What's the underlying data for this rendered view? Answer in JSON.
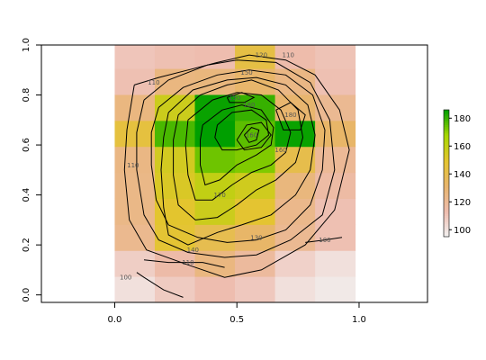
{
  "chart_data": {
    "type": "heatmap",
    "title": "",
    "xlabel": "",
    "ylabel": "",
    "xlim": [
      -0.3,
      1.28
    ],
    "ylim": [
      -0.03,
      1.0
    ],
    "x_ticks": [
      {
        "value": 0.0,
        "label": "0.0"
      },
      {
        "value": 0.5,
        "label": "0.5"
      },
      {
        "value": 1.0,
        "label": "1.0"
      }
    ],
    "y_ticks": [
      {
        "value": 0.0,
        "label": "0.0"
      },
      {
        "value": 0.2,
        "label": "0.2"
      },
      {
        "value": 0.4,
        "label": "0.4"
      },
      {
        "value": 0.6,
        "label": "0.6"
      },
      {
        "value": 0.8,
        "label": "0.8"
      },
      {
        "value": 1.0,
        "label": "1.0"
      }
    ],
    "grid": false,
    "x_edges": [
      0.0,
      0.164,
      0.328,
      0.492,
      0.656,
      0.82,
      0.984
    ],
    "y_edges": [
      -0.03,
      0.074,
      0.178,
      0.282,
      0.386,
      0.49,
      0.594,
      0.698,
      0.802,
      0.906,
      1.0
    ],
    "cells_bottom_to_top": [
      [
        101,
        108,
        113,
        109,
        101,
        98
      ],
      [
        107,
        115,
        126,
        118,
        106,
        101
      ],
      [
        122,
        148,
        140,
        133,
        121,
        112
      ],
      [
        124,
        150,
        157,
        149,
        123,
        112
      ],
      [
        124,
        153,
        160,
        156,
        127,
        116
      ],
      [
        125,
        155,
        174,
        172,
        141,
        120
      ],
      [
        145,
        178,
        186,
        176,
        185,
        133
      ],
      [
        126,
        157,
        185,
        180,
        131,
        121
      ],
      [
        112,
        126,
        127,
        132,
        125,
        112
      ],
      [
        110,
        112,
        113,
        143,
        114,
        111
      ]
    ],
    "color_scale": {
      "min": 95,
      "max": 186,
      "stops": [
        "#f2f2f2",
        "#eebcae",
        "#e8b56d",
        "#e4c52f",
        "#a7d700",
        "#009f00"
      ]
    },
    "legend": {
      "position": "right",
      "ticks": [
        100,
        120,
        140,
        160,
        180
      ]
    },
    "contours": [
      {
        "label": "100",
        "label_at": [
          0.045,
          0.07
        ],
        "points": [
          [
            0.09,
            0.09
          ],
          [
            0.12,
            0.07
          ],
          [
            0.2,
            0.02
          ],
          [
            0.28,
            -0.01
          ]
        ]
      },
      {
        "label": "100",
        "label_at": [
          0.86,
          0.22
        ],
        "points": [
          [
            0.78,
            0.21
          ],
          [
            0.86,
            0.22
          ],
          [
            0.93,
            0.23
          ]
        ]
      },
      {
        "label": "110",
        "label_at": [
          0.3,
          0.13
        ],
        "points": [
          [
            0.12,
            0.14
          ],
          [
            0.22,
            0.13
          ],
          [
            0.36,
            0.13
          ],
          [
            0.45,
            0.11
          ]
        ]
      },
      {
        "label": "110",
        "label_at": [
          0.16,
          0.85
        ],
        "points": [
          [
            0.08,
            0.84
          ],
          [
            0.18,
            0.87
          ],
          [
            0.3,
            0.9
          ],
          [
            0.42,
            0.93
          ],
          [
            0.55,
            0.96
          ],
          [
            0.7,
            0.94
          ],
          [
            0.82,
            0.88
          ],
          [
            0.92,
            0.74
          ],
          [
            0.96,
            0.58
          ],
          [
            0.9,
            0.34
          ],
          [
            0.78,
            0.2
          ],
          [
            0.6,
            0.1
          ],
          [
            0.45,
            0.07
          ],
          [
            0.3,
            0.12
          ],
          [
            0.13,
            0.18
          ],
          [
            0.06,
            0.3
          ],
          [
            0.04,
            0.5
          ],
          [
            0.05,
            0.66
          ],
          [
            0.08,
            0.84
          ]
        ]
      },
      {
        "label": "110",
        "label_at": [
          0.075,
          0.52
        ],
        "points": []
      },
      {
        "label": "110",
        "label_at": [
          0.71,
          0.96
        ],
        "points": []
      },
      {
        "label": "120",
        "label_at": [
          0.6,
          0.96
        ],
        "points": [
          [
            0.12,
            0.78
          ],
          [
            0.22,
            0.86
          ],
          [
            0.38,
            0.92
          ],
          [
            0.5,
            0.94
          ],
          [
            0.66,
            0.93
          ],
          [
            0.8,
            0.85
          ],
          [
            0.88,
            0.7
          ],
          [
            0.9,
            0.5
          ],
          [
            0.85,
            0.32
          ],
          [
            0.72,
            0.22
          ],
          [
            0.58,
            0.16
          ],
          [
            0.45,
            0.15
          ],
          [
            0.3,
            0.17
          ],
          [
            0.18,
            0.22
          ],
          [
            0.12,
            0.32
          ],
          [
            0.09,
            0.5
          ],
          [
            0.09,
            0.65
          ],
          [
            0.12,
            0.78
          ]
        ]
      },
      {
        "label": "130",
        "label_at": [
          0.58,
          0.23
        ],
        "points": [
          [
            0.18,
            0.75
          ],
          [
            0.28,
            0.83
          ],
          [
            0.42,
            0.88
          ],
          [
            0.55,
            0.9
          ],
          [
            0.7,
            0.88
          ],
          [
            0.81,
            0.8
          ],
          [
            0.86,
            0.66
          ],
          [
            0.85,
            0.5
          ],
          [
            0.8,
            0.36
          ],
          [
            0.7,
            0.26
          ],
          [
            0.58,
            0.22
          ],
          [
            0.46,
            0.21
          ],
          [
            0.34,
            0.23
          ],
          [
            0.22,
            0.28
          ],
          [
            0.17,
            0.38
          ],
          [
            0.15,
            0.52
          ],
          [
            0.15,
            0.65
          ],
          [
            0.18,
            0.75
          ]
        ]
      },
      {
        "label": "140",
        "label_at": [
          0.32,
          0.18
        ],
        "points": [
          [
            0.22,
            0.73
          ],
          [
            0.32,
            0.82
          ],
          [
            0.46,
            0.86
          ],
          [
            0.58,
            0.87
          ],
          [
            0.7,
            0.84
          ],
          [
            0.79,
            0.76
          ],
          [
            0.82,
            0.64
          ],
          [
            0.8,
            0.5
          ],
          [
            0.74,
            0.4
          ],
          [
            0.64,
            0.32
          ],
          [
            0.52,
            0.28
          ],
          [
            0.42,
            0.25
          ],
          [
            0.3,
            0.2
          ],
          [
            0.22,
            0.24
          ],
          [
            0.2,
            0.35
          ],
          [
            0.19,
            0.5
          ],
          [
            0.2,
            0.63
          ],
          [
            0.22,
            0.73
          ]
        ]
      },
      {
        "label": "150",
        "label_at": [
          0.54,
          0.89
        ],
        "points": [
          [
            0.26,
            0.72
          ],
          [
            0.35,
            0.8
          ],
          [
            0.46,
            0.84
          ],
          [
            0.56,
            0.86
          ],
          [
            0.67,
            0.82
          ],
          [
            0.75,
            0.74
          ],
          [
            0.77,
            0.63
          ],
          [
            0.74,
            0.53
          ],
          [
            0.66,
            0.46
          ],
          [
            0.58,
            0.42
          ],
          [
            0.5,
            0.36
          ],
          [
            0.42,
            0.31
          ],
          [
            0.33,
            0.3
          ],
          [
            0.26,
            0.36
          ],
          [
            0.24,
            0.48
          ],
          [
            0.24,
            0.62
          ],
          [
            0.26,
            0.72
          ]
        ]
      },
      {
        "label": "160",
        "label_at": [
          0.68,
          0.58
        ],
        "points": [
          [
            0.3,
            0.7
          ],
          [
            0.4,
            0.78
          ],
          [
            0.5,
            0.81
          ],
          [
            0.6,
            0.8
          ],
          [
            0.68,
            0.74
          ],
          [
            0.72,
            0.65
          ],
          [
            0.7,
            0.57
          ],
          [
            0.64,
            0.52
          ],
          [
            0.56,
            0.49
          ],
          [
            0.48,
            0.44
          ],
          [
            0.4,
            0.38
          ],
          [
            0.33,
            0.38
          ],
          [
            0.3,
            0.48
          ],
          [
            0.29,
            0.6
          ],
          [
            0.3,
            0.7
          ]
        ]
      },
      {
        "label": "170",
        "label_at": [
          0.43,
          0.4
        ],
        "points": [
          [
            0.36,
            0.68
          ],
          [
            0.44,
            0.74
          ],
          [
            0.52,
            0.76
          ],
          [
            0.6,
            0.74
          ],
          [
            0.65,
            0.67
          ],
          [
            0.64,
            0.6
          ],
          [
            0.58,
            0.56
          ],
          [
            0.5,
            0.52
          ],
          [
            0.43,
            0.46
          ],
          [
            0.37,
            0.44
          ],
          [
            0.35,
            0.52
          ],
          [
            0.35,
            0.62
          ],
          [
            0.36,
            0.68
          ]
        ]
      },
      {
        "label": "180",
        "label_at": [
          0.55,
          0.76
        ],
        "points": [
          [
            0.42,
            0.68
          ],
          [
            0.48,
            0.73
          ],
          [
            0.56,
            0.74
          ],
          [
            0.62,
            0.7
          ],
          [
            0.63,
            0.64
          ],
          [
            0.58,
            0.6
          ],
          [
            0.5,
            0.58
          ],
          [
            0.44,
            0.58
          ],
          [
            0.41,
            0.63
          ],
          [
            0.42,
            0.68
          ]
        ]
      },
      {
        "label": "180",
        "label_at": [
          0.72,
          0.72
        ],
        "points": [
          [
            0.66,
            0.74
          ],
          [
            0.72,
            0.77
          ],
          [
            0.78,
            0.72
          ],
          [
            0.76,
            0.66
          ],
          [
            0.69,
            0.66
          ],
          [
            0.66,
            0.74
          ]
        ]
      },
      {
        "label": "190",
        "label_at": [
          0.49,
          0.79
        ],
        "points": [
          [
            0.46,
            0.79
          ],
          [
            0.52,
            0.81
          ],
          [
            0.57,
            0.79
          ],
          [
            0.53,
            0.77
          ],
          [
            0.47,
            0.77
          ],
          [
            0.46,
            0.79
          ]
        ]
      },
      {
        "label": "160",
        "label_at": [
          0.56,
          0.64
        ],
        "points": [
          [
            0.5,
            0.62
          ],
          [
            0.54,
            0.68
          ],
          [
            0.6,
            0.69
          ],
          [
            0.64,
            0.64
          ],
          [
            0.6,
            0.59
          ],
          [
            0.53,
            0.58
          ],
          [
            0.5,
            0.62
          ]
        ]
      },
      {
        "label": "",
        "label_at": null,
        "points": [
          [
            0.53,
            0.64
          ],
          [
            0.56,
            0.67
          ],
          [
            0.59,
            0.66
          ],
          [
            0.58,
            0.62
          ],
          [
            0.55,
            0.61
          ],
          [
            0.53,
            0.64
          ]
        ]
      }
    ]
  }
}
